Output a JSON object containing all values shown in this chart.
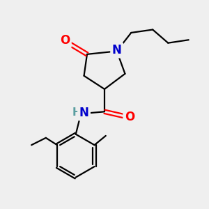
{
  "bg_color": "#efefef",
  "atom_colors": {
    "O": "#ff0000",
    "N": "#0000cc",
    "NH": "#5a9ea0",
    "C": "#000000"
  },
  "font_size_atom": 12,
  "font_size_small": 11,
  "lw": 1.6
}
